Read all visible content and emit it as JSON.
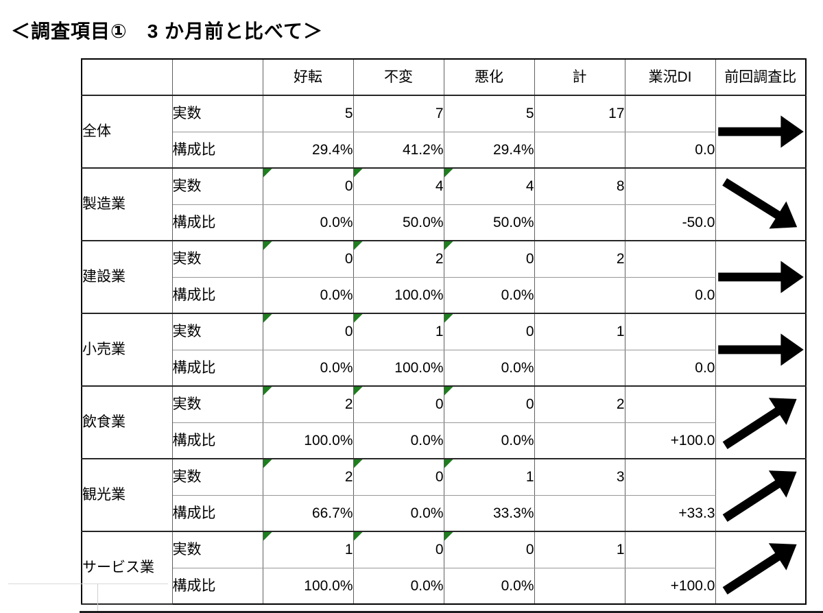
{
  "title": "＜調査項目①　3 か月前と比べて＞",
  "colors": {
    "flag_green": "#1e7e1e",
    "arrow_black": "#000000",
    "border_dark": "#262626",
    "border_mid": "#5f5f5f",
    "border_light": "#979797"
  },
  "table": {
    "headers": {
      "sector": "",
      "rowtype": "",
      "improve": "好転",
      "unchanged": "不変",
      "worsen": "悪化",
      "total": "計",
      "di": "業況DI",
      "vs_previous": "前回調査比"
    },
    "row_labels": {
      "actual": "実数",
      "ratio": "構成比"
    },
    "groups": [
      {
        "sector": "全体",
        "actual": [
          "5",
          "7",
          "5",
          "17"
        ],
        "ratio": [
          "29.4%",
          "41.2%",
          "29.4%"
        ],
        "di": "0.0",
        "arrow": "right",
        "flags": false
      },
      {
        "sector": "製造業",
        "actual": [
          "0",
          "4",
          "4",
          "8"
        ],
        "ratio": [
          "0.0%",
          "50.0%",
          "50.0%"
        ],
        "di": "-50.0",
        "arrow": "down-right",
        "flags": true
      },
      {
        "sector": "建設業",
        "actual": [
          "0",
          "2",
          "0",
          "2"
        ],
        "ratio": [
          "0.0%",
          "100.0%",
          "0.0%"
        ],
        "di": "0.0",
        "arrow": "right",
        "flags": true
      },
      {
        "sector": "小売業",
        "actual": [
          "0",
          "1",
          "0",
          "1"
        ],
        "ratio": [
          "0.0%",
          "100.0%",
          "0.0%"
        ],
        "di": "0.0",
        "arrow": "right",
        "flags": true
      },
      {
        "sector": "飲食業",
        "actual": [
          "2",
          "0",
          "0",
          "2"
        ],
        "ratio": [
          "100.0%",
          "0.0%",
          "0.0%"
        ],
        "di": "+100.0",
        "arrow": "up-right",
        "flags": true
      },
      {
        "sector": "観光業",
        "actual": [
          "2",
          "0",
          "1",
          "3"
        ],
        "ratio": [
          "66.7%",
          "0.0%",
          "33.3%"
        ],
        "di": "+33.3",
        "arrow": "up-right",
        "flags": true
      },
      {
        "sector": "サービス業",
        "actual": [
          "1",
          "0",
          "0",
          "1"
        ],
        "ratio": [
          "100.0%",
          "0.0%",
          "0.0%"
        ],
        "di": "+100.0",
        "arrow": "+up-right",
        "flags": true
      }
    ]
  }
}
